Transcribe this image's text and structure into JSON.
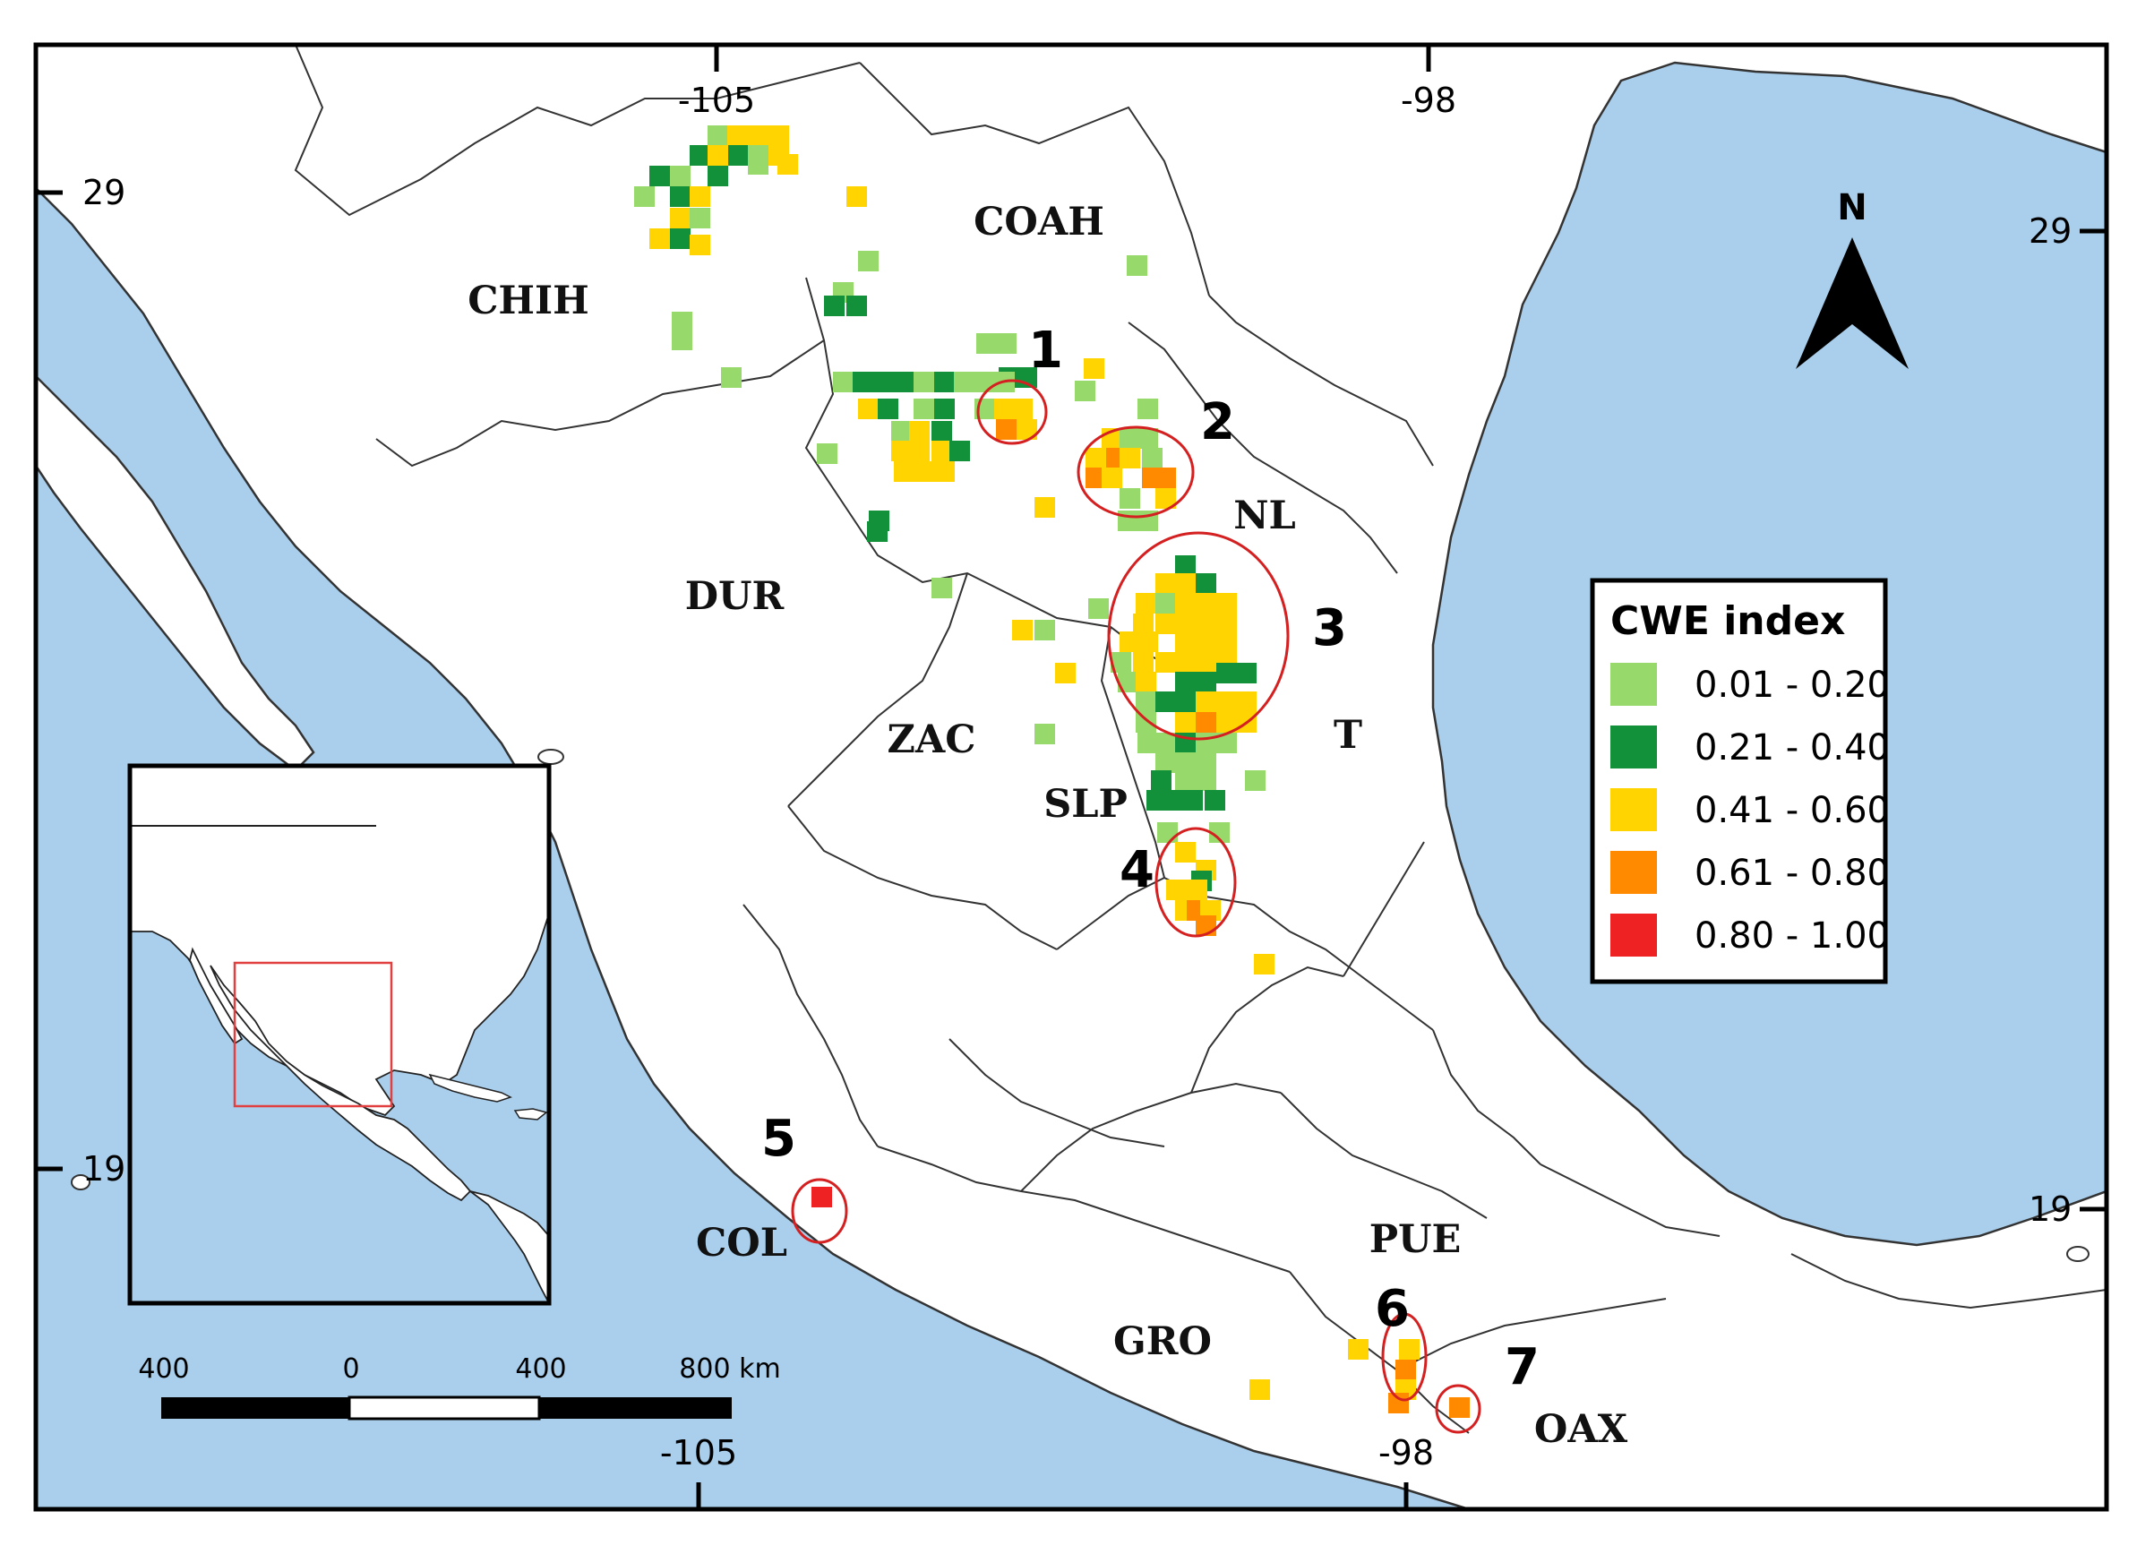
{
  "colors": {
    "sea": "#aacfec",
    "land": "#ffffff",
    "border": "#333333",
    "c1": "#97d96a",
    "c2": "#13913a",
    "c3": "#ffd400",
    "c4": "#ff8a00",
    "c5": "#ee2222",
    "circle": "#d42020",
    "inset_box": "#e04040"
  },
  "map": {
    "lon_ticks_top": [
      "-105",
      "-98"
    ],
    "lon_ticks_bottom": [
      "-105",
      "-98"
    ],
    "lat_ticks_left": [
      "29",
      "19"
    ],
    "lat_ticks_right": [
      "29",
      "19"
    ],
    "north_label": "N",
    "states": [
      {
        "key": "chih",
        "text": "CHIH"
      },
      {
        "key": "coah",
        "text": "COAH"
      },
      {
        "key": "dur",
        "text": "DUR"
      },
      {
        "key": "nl",
        "text": "NL"
      },
      {
        "key": "zac",
        "text": "ZAC"
      },
      {
        "key": "slp",
        "text": "SLP"
      },
      {
        "key": "t",
        "text": "T"
      },
      {
        "key": "col",
        "text": "COL"
      },
      {
        "key": "gro",
        "text": "GRO"
      },
      {
        "key": "pue",
        "text": "PUE"
      },
      {
        "key": "oax",
        "text": "OAX"
      }
    ],
    "clusters": [
      "1",
      "2",
      "3",
      "4",
      "5",
      "6",
      "7"
    ]
  },
  "legend": {
    "title": "CWE index",
    "items": [
      {
        "label": "0.01 - 0.20",
        "color": "#97d96a"
      },
      {
        "label": "0.21 - 0.40",
        "color": "#13913a"
      },
      {
        "label": "0.41 - 0.60",
        "color": "#ffd400"
      },
      {
        "label": "0.61 - 0.80",
        "color": "#ff8a00"
      },
      {
        "label": "0.80 - 1.00",
        "color": "#ee2222"
      }
    ]
  },
  "scale_bar": {
    "labels": [
      "400",
      "0",
      "400",
      "800 km"
    ]
  }
}
